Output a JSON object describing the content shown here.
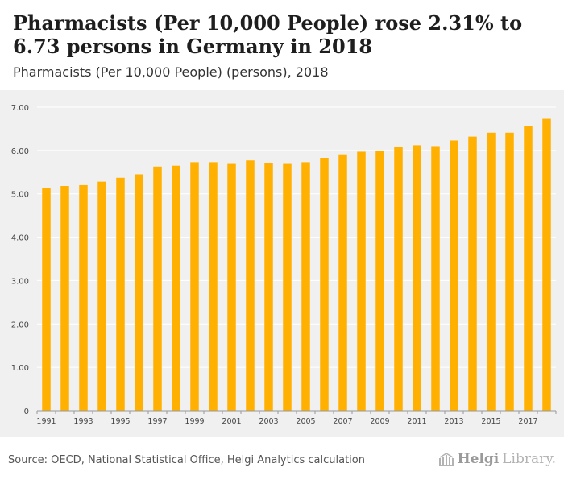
{
  "header": {
    "title": "Pharmacists (Per 10,000 People) rose 2.31% to 6.73 persons in Germany in 2018",
    "subtitle": "Pharmacists (Per 10,000 People) (persons), 2018"
  },
  "footer": {
    "source": "Source: OECD, National Statistical Office, Helgi Analytics calculation",
    "logo_bold": "Helgi",
    "logo_rest": "Library."
  },
  "colors": {
    "bar": "#FFB000",
    "plot_bg": "#F0F0F0",
    "grid": "#FFFFFF"
  },
  "chart_data": {
    "type": "bar",
    "categories": [
      "1991",
      "1992",
      "1993",
      "1994",
      "1995",
      "1996",
      "1997",
      "1998",
      "1999",
      "2000",
      "2001",
      "2002",
      "2003",
      "2004",
      "2005",
      "2006",
      "2007",
      "2008",
      "2009",
      "2010",
      "2011",
      "2012",
      "2013",
      "2014",
      "2015",
      "2016",
      "2017",
      "2018"
    ],
    "x_tick_labels": [
      "1991",
      "1993",
      "1995",
      "1997",
      "1999",
      "2001",
      "2003",
      "2005",
      "2007",
      "2009",
      "2011",
      "2013",
      "2015",
      "2017"
    ],
    "values": [
      5.13,
      5.18,
      5.2,
      5.28,
      5.37,
      5.45,
      5.63,
      5.65,
      5.73,
      5.73,
      5.69,
      5.77,
      5.7,
      5.69,
      5.73,
      5.83,
      5.91,
      5.97,
      5.99,
      6.08,
      6.12,
      6.1,
      6.23,
      6.32,
      6.41,
      6.41,
      6.57,
      6.73
    ],
    "y_ticks": [
      "7.00",
      "6.00",
      "5.00",
      "4.00",
      "3.00",
      "2.00",
      "1.00",
      "0"
    ],
    "y_tick_values": [
      7,
      6,
      5,
      4,
      3,
      2,
      1,
      0
    ],
    "ylim": [
      0,
      7
    ],
    "grid": true,
    "title": "Pharmacists (Per 10,000 People) rose 2.31% to 6.73 persons in Germany in 2018",
    "subtitle": "Pharmacists (Per 10,000 People) (persons), 2018"
  }
}
